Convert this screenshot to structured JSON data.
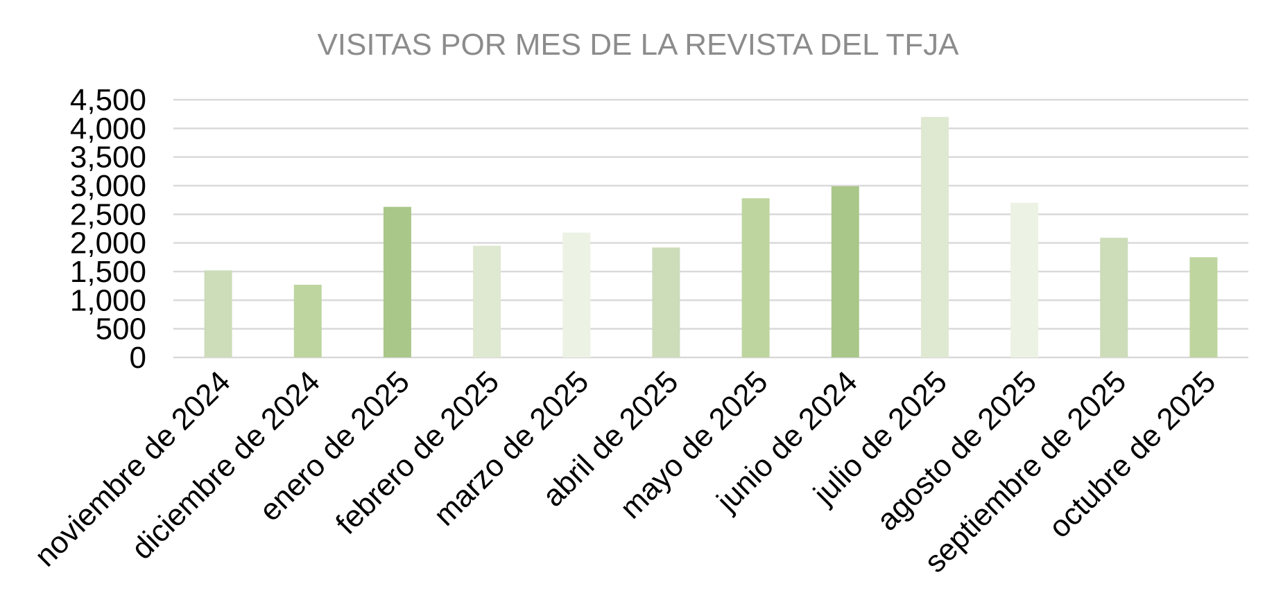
{
  "chart_data": {
    "type": "bar",
    "title": "VISITAS POR MES DE LA REVISTA  DEL TFJA",
    "xlabel": "",
    "ylabel": "",
    "categories": [
      "noviembre de 2024",
      "diciembre de 2024",
      "enero de 2025",
      "febrero de 2025",
      "marzo de 2025",
      "abril de 2025",
      "mayo de 2025",
      "junio de 2024",
      "julio de 2025",
      "agosto de 2025",
      "septiembre de 2025",
      "octubre de 2025"
    ],
    "values": [
      1520,
      1270,
      2630,
      1950,
      2180,
      1920,
      2780,
      2990,
      4200,
      2700,
      2090,
      1750
    ],
    "ylim": [
      0,
      4500
    ],
    "yticks": [
      "0",
      "500",
      "1,000",
      "1,500",
      "2,000",
      "2,500",
      "3,000",
      "3,500",
      "4,000",
      "4,500"
    ],
    "grid": true,
    "legend": "none",
    "bar_colors": [
      "#cddcb9",
      "#bed59f",
      "#a9c789",
      "#dfe8d1",
      "#ecf2e4",
      "#cddcb9",
      "#bed59f",
      "#a9c789",
      "#dfe8d1",
      "#ecf2e4",
      "#cddcb9",
      "#bed59f"
    ],
    "title_color": "#8c8c8c",
    "gridline_color": "#d9d9d9"
  }
}
